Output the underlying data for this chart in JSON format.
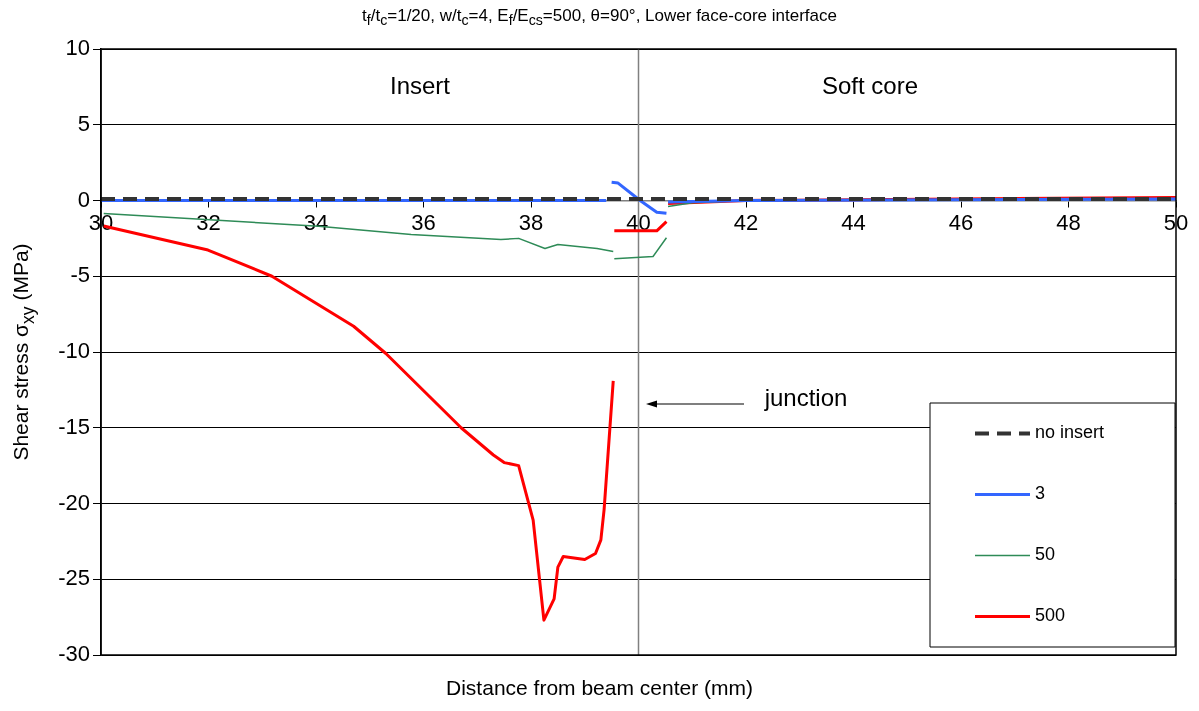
{
  "chart_data": {
    "type": "line",
    "title": "t$_{f}$/t$_{c}$=1/20,  w/t$_{c}$=4,  E$_{f}$/E$_{cs}$=500,  θ=90°,  Lower face-core interface",
    "xlabel": "Distance from beam center (mm)",
    "ylabel": "Shear stress σ$_{xy}$  (MPa)",
    "xlim": [
      30,
      50
    ],
    "xticks": [
      30,
      32,
      34,
      36,
      38,
      40,
      42,
      44,
      46,
      48,
      50
    ],
    "ylim": [
      -30,
      10
    ],
    "yticks": [
      -30,
      -25,
      -20,
      -15,
      -10,
      -5,
      0,
      5,
      10
    ],
    "grid": "y",
    "legend": "bottom right",
    "ref_lines": [
      {
        "axis": "x",
        "value": 40,
        "color": "#808080"
      }
    ],
    "annotations": [
      "Insert",
      "Soft core",
      "junction"
    ],
    "series": [
      {
        "name": "no insert",
        "color": "#333333",
        "line_style": "dashed",
        "x": [
          30,
          50
        ],
        "values": [
          0.1,
          0.1
        ]
      },
      {
        "name": "3",
        "color": "#3366ff",
        "x": [
          30,
          35,
          39.4,
          39.45,
          39.5,
          39.62,
          40.03,
          40.34,
          40.52,
          40.53,
          40.55,
          42,
          50
        ],
        "values": [
          0,
          0,
          0,
          null,
          1.2,
          1.15,
          0,
          -0.77,
          -0.84,
          null,
          -0.1,
          0,
          0.1
        ]
      },
      {
        "name": "50",
        "color": "#2e8b57",
        "x": [
          30.05,
          34.05,
          35.77,
          37.44,
          37.77,
          38.26,
          38.5,
          39.23,
          39.53,
          39.54,
          39.55,
          40.27,
          40.52,
          40.53,
          40.55,
          41,
          42,
          50
        ],
        "values": [
          -0.85,
          -1.7,
          -2.25,
          -2.57,
          -2.5,
          -3.17,
          -2.9,
          -3.17,
          -3.37,
          null,
          -3.85,
          -3.7,
          -2.46,
          null,
          -0.4,
          -0.15,
          0,
          0.1
        ]
      },
      {
        "name": "500",
        "color": "#ff0000",
        "x": [
          30.05,
          31.99,
          33.18,
          34.7,
          35.3,
          36.7,
          37.3,
          37.5,
          37.77,
          38.04,
          38.24,
          38.43,
          38.5,
          38.6,
          39.0,
          39.2,
          39.3,
          39.36,
          39.53,
          39.54,
          39.55,
          40.34,
          40.52,
          40.53,
          40.55,
          42,
          50
        ],
        "values": [
          -1.68,
          -3.27,
          -5.0,
          -8.3,
          -10.1,
          -15.0,
          -16.8,
          -17.3,
          -17.5,
          -21.1,
          -27.7,
          -26.3,
          -24.2,
          -23.5,
          -23.7,
          -23.3,
          -22.4,
          -20.4,
          -11.9,
          null,
          -2.0,
          -2.0,
          -1.4,
          null,
          -0.2,
          0,
          0.2
        ]
      }
    ]
  }
}
